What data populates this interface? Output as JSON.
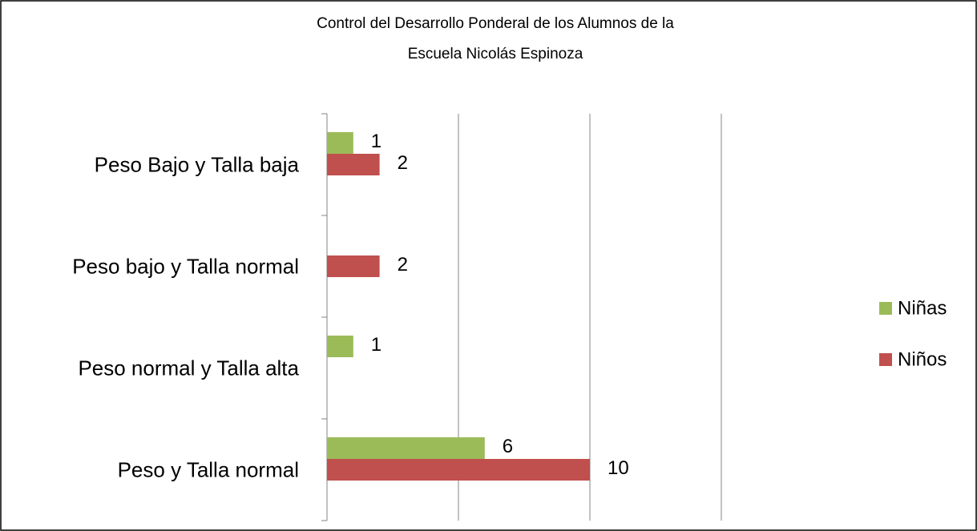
{
  "chart_data": {
    "type": "bar",
    "orientation": "horizontal",
    "title": [
      "Control del Desarrollo Ponderal de los Alumnos de la",
      "Escuela Nicolás Espinoza"
    ],
    "categories": [
      "Peso Bajo y Talla baja",
      "Peso bajo y Talla normal",
      "Peso normal  y Talla alta",
      "Peso y Talla normal"
    ],
    "series": [
      {
        "name": "Niñas",
        "color": "#9bbb59",
        "values": [
          1,
          null,
          1,
          6
        ]
      },
      {
        "name": "Niños",
        "color": "#c0504d",
        "values": [
          2,
          2,
          null,
          10
        ]
      }
    ],
    "xlim": [
      0,
      15
    ],
    "xticks": [
      0,
      5,
      10,
      15
    ],
    "grid": true,
    "legend": "right"
  }
}
